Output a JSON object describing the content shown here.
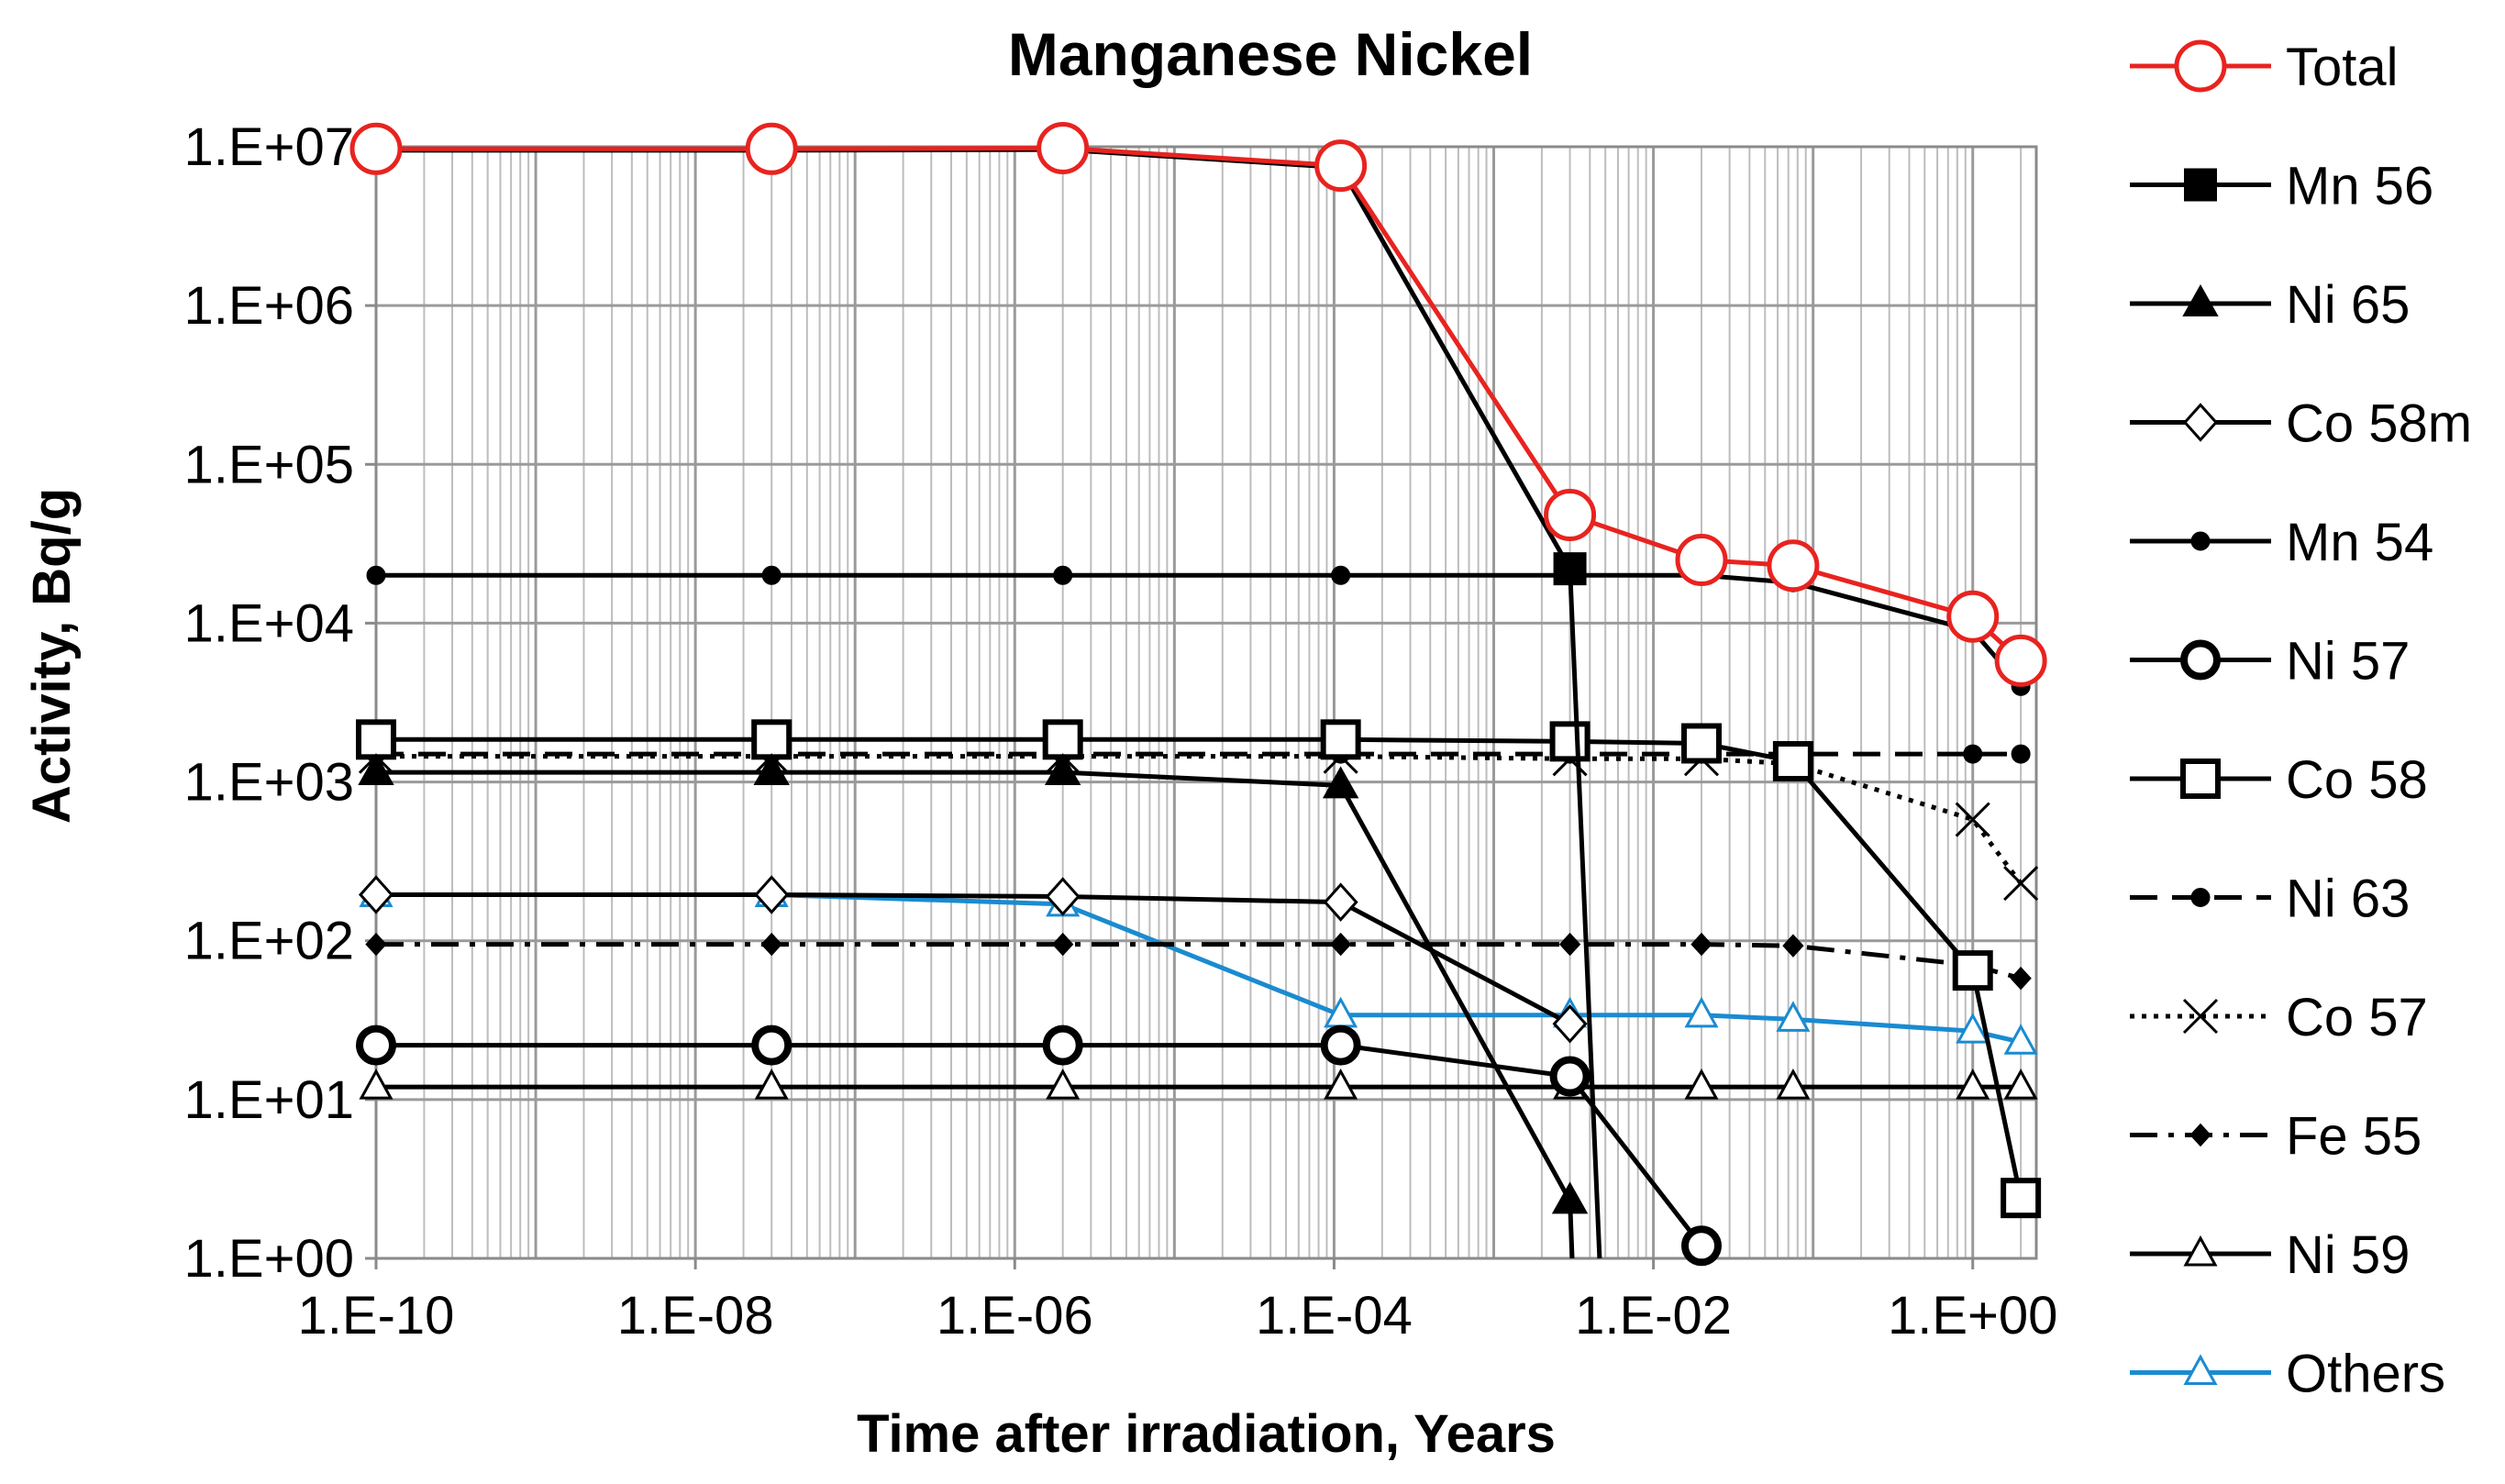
{
  "chart_data": {
    "type": "line",
    "title": "Manganese Nickel",
    "xlabel": "Time after irradiation, Years",
    "ylabel": "Activity, Bq/g",
    "xscale": "log",
    "yscale": "log",
    "xlim": [
      1e-10,
      2.5
    ],
    "ylim": [
      1,
      10000000
    ],
    "x_tick_values": [
      1e-10,
      1e-08,
      1e-06,
      0.0001,
      0.01,
      1
    ],
    "x_tick_labels": [
      "1.E-10",
      "1.E-08",
      "1.E-06",
      "1.E-04",
      "1.E-02",
      "1.E+00"
    ],
    "y_tick_values": [
      1,
      10,
      100,
      1000,
      10000,
      100000,
      1000000,
      10000000
    ],
    "y_tick_labels": [
      "1.E+00",
      "1.E+01",
      "1.E+02",
      "1.E+03",
      "1.E+04",
      "1.E+05",
      "1.E+06",
      "1.E+07"
    ],
    "grid": true,
    "legend_position": "right",
    "series": [
      {
        "name": "Total",
        "color": "#e8231f",
        "dash": "solid",
        "marker": "circle-open-large",
        "x": [
          1e-10,
          3e-08,
          2e-06,
          0.00011,
          0.003,
          0.02,
          0.075,
          1.0,
          2.0
        ],
        "y": [
          9700000.0,
          9700000.0,
          9800000.0,
          7600000.0,
          48000.0,
          25000.0,
          23000.0,
          11000.0,
          5800.0
        ]
      },
      {
        "name": "Mn 56",
        "color": "#000000",
        "dash": "solid",
        "marker": "square-filled",
        "x": [
          1e-10,
          3e-08,
          2e-06,
          0.00011,
          0.003,
          0.0046
        ],
        "y": [
          9500000.0,
          9500000.0,
          9600000.0,
          7400000.0,
          22000.0,
          1
        ]
      },
      {
        "name": "Ni 65",
        "color": "#000000",
        "dash": "solid",
        "marker": "triangle-filled",
        "x": [
          1e-10,
          3e-08,
          2e-06,
          0.00011,
          0.003,
          0.0031
        ],
        "y": [
          1150,
          1150,
          1150,
          950,
          2.3,
          1
        ]
      },
      {
        "name": "Co 58m",
        "color": "#000000",
        "dash": "solid",
        "marker": "diamond-open",
        "x": [
          1e-10,
          3e-08,
          2e-06,
          0.00011,
          0.003
        ],
        "y": [
          195,
          195,
          190,
          175,
          30
        ]
      },
      {
        "name": "Mn 54",
        "color": "#000000",
        "dash": "solid",
        "marker": "circle-filled",
        "x": [
          1e-10,
          3e-08,
          2e-06,
          0.00011,
          0.003,
          0.02,
          0.075,
          1.0,
          2.0
        ],
        "y": [
          20000.0,
          20000.0,
          20000.0,
          20000.0,
          20000.0,
          20000.0,
          18000.0,
          9000.0,
          4000.0
        ]
      },
      {
        "name": "Ni 57",
        "color": "#000000",
        "dash": "solid",
        "marker": "circle-open-bold",
        "x": [
          1e-10,
          3e-08,
          2e-06,
          0.00011,
          0.003,
          0.02
        ],
        "y": [
          22,
          22,
          22,
          22,
          14,
          1.2
        ]
      },
      {
        "name": "Co 58",
        "color": "#000000",
        "dash": "solid",
        "marker": "square-open",
        "x": [
          1e-10,
          3e-08,
          2e-06,
          0.00011,
          0.003,
          0.02,
          0.075,
          1.0,
          2.0
        ],
        "y": [
          1850,
          1850,
          1850,
          1850,
          1800,
          1750,
          1350,
          65,
          2.4
        ]
      },
      {
        "name": "Ni 63",
        "color": "#000000",
        "dash": "dash",
        "marker": "circle-filled",
        "x": [
          1e-10,
          3e-08,
          2e-06,
          0.00011,
          0.003,
          0.02,
          0.075,
          1.0,
          2.0
        ],
        "y": [
          1500,
          1500,
          1500,
          1500,
          1500,
          1500,
          1500,
          1500,
          1500
        ]
      },
      {
        "name": "Co 57",
        "color": "#000000",
        "dash": "dot",
        "marker": "x",
        "x": [
          1e-10,
          3e-08,
          2e-06,
          0.00011,
          0.003,
          0.02,
          0.075,
          1.0,
          2.0
        ],
        "y": [
          1450,
          1450,
          1450,
          1450,
          1400,
          1400,
          1300,
          580,
          230
        ]
      },
      {
        "name": "Fe 55",
        "color": "#000000",
        "dash": "dashdot",
        "marker": "diamond-filled",
        "x": [
          1e-10,
          3e-08,
          2e-06,
          0.00011,
          0.003,
          0.02,
          0.075,
          1.0,
          2.0
        ],
        "y": [
          95,
          95,
          95,
          95,
          95,
          95,
          93,
          70,
          58
        ]
      },
      {
        "name": "Ni 59",
        "color": "#000000",
        "dash": "solid",
        "marker": "triangle-open",
        "x": [
          1e-10,
          3e-08,
          2e-06,
          0.00011,
          0.003,
          0.02,
          0.075,
          1.0,
          2.0
        ],
        "y": [
          12,
          12,
          12,
          12,
          12,
          12,
          12,
          12,
          12
        ]
      },
      {
        "name": "Others",
        "color": "#1a8bd1",
        "dash": "solid",
        "marker": "triangle-open",
        "x": [
          1e-10,
          3e-08,
          2e-06,
          0.00011,
          0.003,
          0.02,
          0.075,
          1.0,
          2.0
        ],
        "y": [
          195,
          195,
          170,
          34,
          34,
          34,
          32,
          27,
          23
        ]
      }
    ]
  }
}
